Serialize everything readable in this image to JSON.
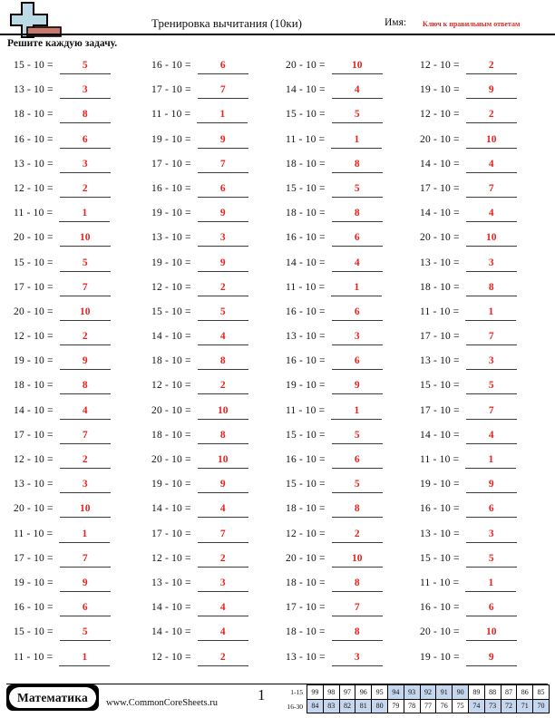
{
  "header": {
    "title": "Тренировка вычитания (10ки)",
    "name_label": "Имя:",
    "answer_key_label": "Ключ к правильным ответам",
    "accent_red": "#e8231e",
    "logo_blue": "#bcd9e6",
    "logo_brick": "#c9776f"
  },
  "instruction": "Решите каждую задачу.",
  "problems": {
    "operator": "-",
    "subtrahend": "10",
    "equals": "=",
    "answer_color": "#e8231e",
    "cells": [
      [
        15,
        5
      ],
      [
        16,
        6
      ],
      [
        20,
        10
      ],
      [
        12,
        2
      ],
      [
        13,
        3
      ],
      [
        17,
        7
      ],
      [
        14,
        4
      ],
      [
        19,
        9
      ],
      [
        18,
        8
      ],
      [
        11,
        1
      ],
      [
        15,
        5
      ],
      [
        12,
        2
      ],
      [
        16,
        6
      ],
      [
        19,
        9
      ],
      [
        11,
        1
      ],
      [
        20,
        10
      ],
      [
        13,
        3
      ],
      [
        17,
        7
      ],
      [
        18,
        8
      ],
      [
        14,
        4
      ],
      [
        12,
        2
      ],
      [
        16,
        6
      ],
      [
        15,
        5
      ],
      [
        17,
        7
      ],
      [
        11,
        1
      ],
      [
        19,
        9
      ],
      [
        18,
        8
      ],
      [
        14,
        4
      ],
      [
        20,
        10
      ],
      [
        13,
        3
      ],
      [
        16,
        6
      ],
      [
        20,
        10
      ],
      [
        15,
        5
      ],
      [
        19,
        9
      ],
      [
        14,
        4
      ],
      [
        13,
        3
      ],
      [
        17,
        7
      ],
      [
        12,
        2
      ],
      [
        11,
        1
      ],
      [
        18,
        8
      ],
      [
        20,
        10
      ],
      [
        15,
        5
      ],
      [
        16,
        6
      ],
      [
        11,
        1
      ],
      [
        12,
        2
      ],
      [
        14,
        4
      ],
      [
        13,
        3
      ],
      [
        17,
        7
      ],
      [
        19,
        9
      ],
      [
        18,
        8
      ],
      [
        16,
        6
      ],
      [
        13,
        3
      ],
      [
        18,
        8
      ],
      [
        12,
        2
      ],
      [
        19,
        9
      ],
      [
        15,
        5
      ],
      [
        14,
        4
      ],
      [
        20,
        10
      ],
      [
        11,
        1
      ],
      [
        17,
        7
      ],
      [
        17,
        7
      ],
      [
        18,
        8
      ],
      [
        15,
        5
      ],
      [
        14,
        4
      ],
      [
        12,
        2
      ],
      [
        20,
        10
      ],
      [
        16,
        6
      ],
      [
        11,
        1
      ],
      [
        13,
        3
      ],
      [
        19,
        9
      ],
      [
        15,
        5
      ],
      [
        19,
        9
      ],
      [
        20,
        10
      ],
      [
        14,
        4
      ],
      [
        18,
        8
      ],
      [
        16,
        6
      ],
      [
        11,
        1
      ],
      [
        17,
        7
      ],
      [
        12,
        2
      ],
      [
        13,
        3
      ],
      [
        17,
        7
      ],
      [
        12,
        2
      ],
      [
        20,
        10
      ],
      [
        15,
        5
      ],
      [
        19,
        9
      ],
      [
        13,
        3
      ],
      [
        18,
        8
      ],
      [
        11,
        1
      ],
      [
        16,
        6
      ],
      [
        14,
        4
      ],
      [
        17,
        7
      ],
      [
        16,
        6
      ],
      [
        15,
        5
      ],
      [
        14,
        4
      ],
      [
        18,
        8
      ],
      [
        20,
        10
      ],
      [
        11,
        1
      ],
      [
        12,
        2
      ],
      [
        13,
        3
      ],
      [
        19,
        9
      ]
    ]
  },
  "footer": {
    "brand": "Математика",
    "site": "www.CommonCoreSheets.ru",
    "page_number": "1",
    "score_table": {
      "row_labels": [
        "1-15",
        "16-30"
      ],
      "rows": [
        [
          "99",
          "98",
          "97",
          "96",
          "95",
          "94",
          "93",
          "92",
          "91",
          "90",
          "89",
          "88",
          "87",
          "86",
          "85"
        ],
        [
          "84",
          "83",
          "82",
          "81",
          "80",
          "79",
          "78",
          "77",
          "76",
          "75",
          "74",
          "73",
          "72",
          "71",
          "70"
        ]
      ],
      "shaded_cells": [
        [
          5,
          6,
          7,
          8,
          9
        ],
        [
          0,
          1,
          2,
          3,
          4,
          10,
          11,
          12,
          13,
          14
        ]
      ],
      "shade_color": "#c5d7ef"
    }
  }
}
